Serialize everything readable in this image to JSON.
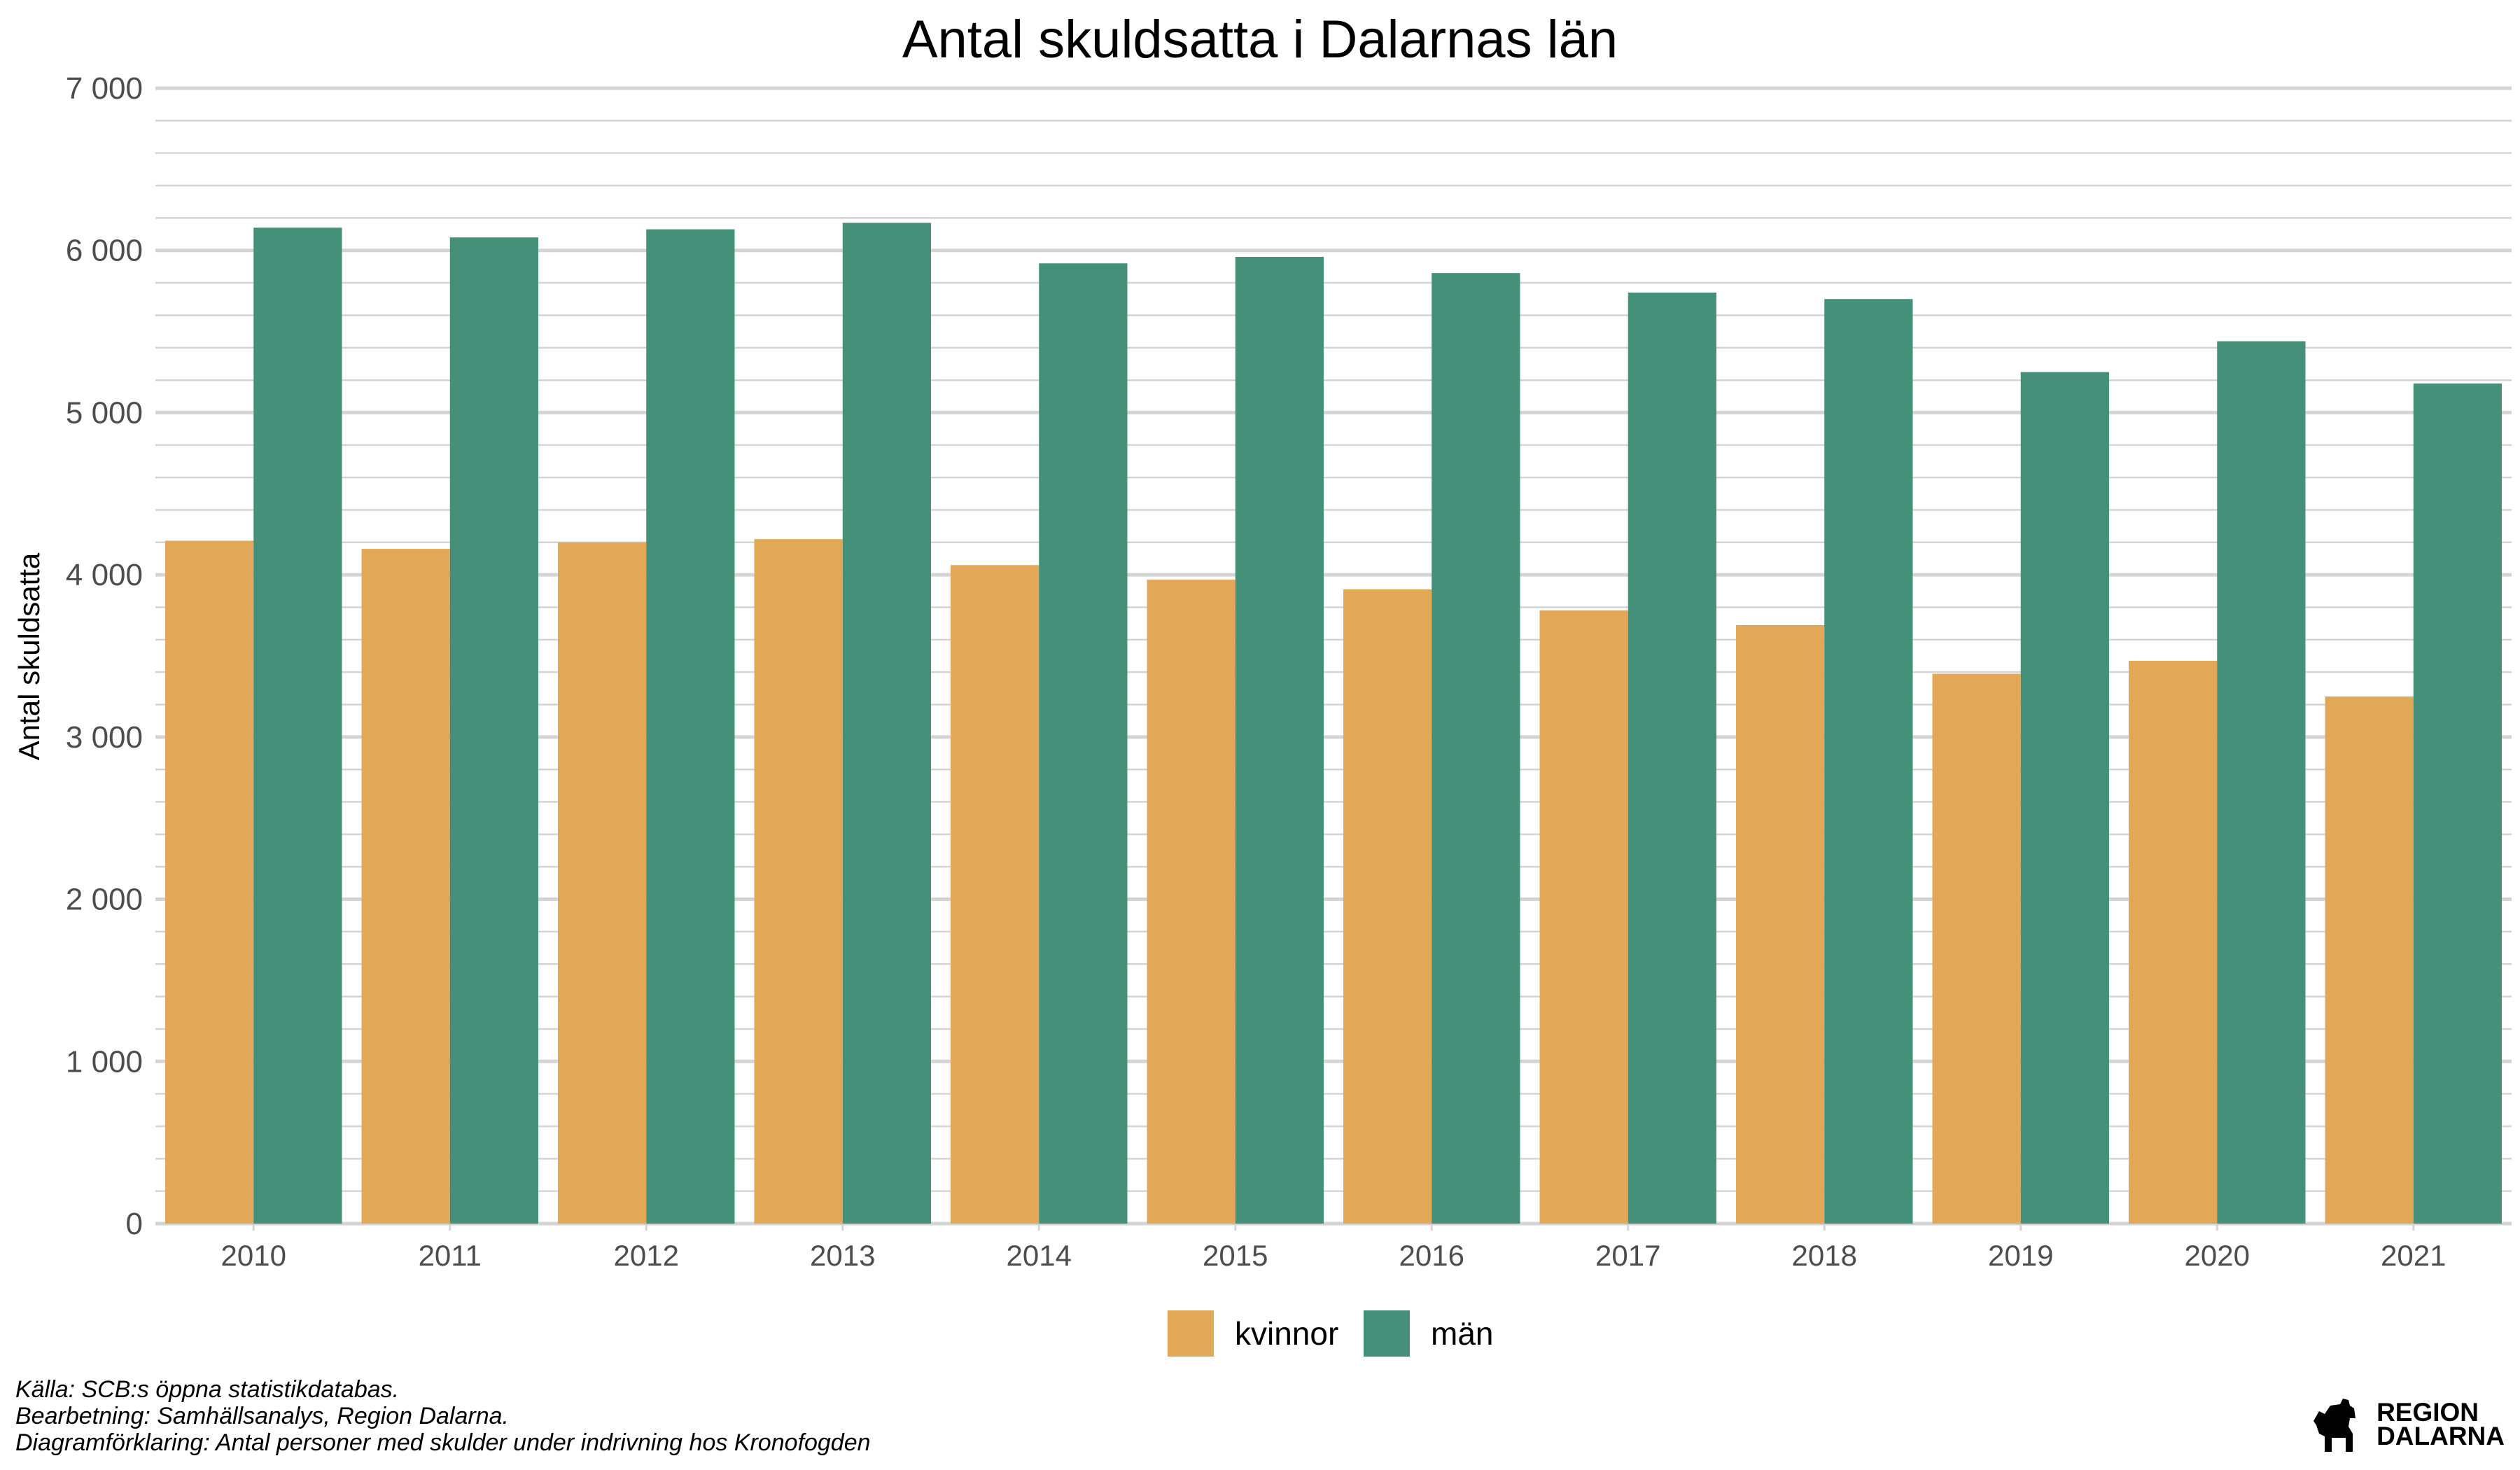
{
  "chart_data": {
    "type": "bar",
    "title": "Antal skuldsatta i Dalarnas län",
    "xlabel": "",
    "ylabel": "Antal skuldsatta",
    "ylim": [
      0,
      7000
    ],
    "yticks": [
      0,
      1000,
      2000,
      3000,
      4000,
      5000,
      6000,
      7000
    ],
    "ytick_labels": [
      "0",
      "1 000",
      "2 000",
      "3 000",
      "4 000",
      "5 000",
      "6 000",
      "7 000"
    ],
    "grid": true,
    "legend_position": "bottom",
    "categories": [
      "2010",
      "2011",
      "2012",
      "2013",
      "2014",
      "2015",
      "2016",
      "2017",
      "2018",
      "2019",
      "2020",
      "2021"
    ],
    "series": [
      {
        "name": "kvinnor",
        "color": "#E3A857",
        "values": [
          4210,
          4160,
          4200,
          4220,
          4060,
          3970,
          3910,
          3780,
          3690,
          3390,
          3470,
          3250
        ]
      },
      {
        "name": "män",
        "color": "#449079",
        "values": [
          6140,
          6080,
          6130,
          6170,
          5920,
          5960,
          5860,
          5740,
          5700,
          5250,
          5440,
          5180
        ]
      }
    ]
  },
  "caption": {
    "source": "Källa: SCB:s öppna statistikdatabas.",
    "processing": "Bearbetning: Samhällsanalys, Region Dalarna.",
    "explanation": "Diagramförklaring: Antal personer med skulder under indrivning hos Kronofogden"
  },
  "logo": {
    "line1": "REGION",
    "line2": "DALARNA",
    "icon": "dala-horse-icon"
  }
}
